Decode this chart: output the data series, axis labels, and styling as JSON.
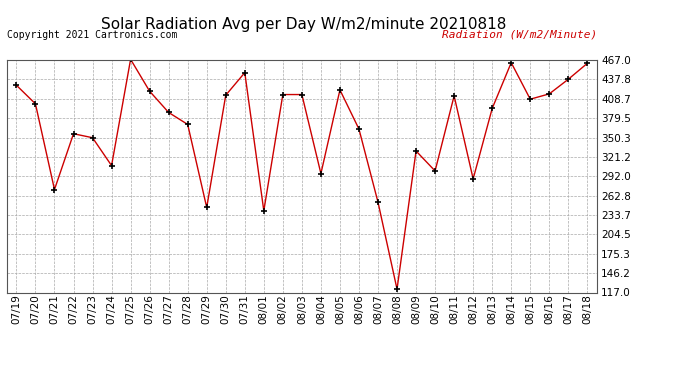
{
  "title": "Solar Radiation Avg per Day W/m2/minute 20210818",
  "copyright": "Copyright 2021 Cartronics.com",
  "legend_label": "Radiation (W/m2/Minute)",
  "dates": [
    "07/19",
    "07/20",
    "07/21",
    "07/22",
    "07/23",
    "07/24",
    "07/25",
    "07/26",
    "07/27",
    "07/28",
    "07/29",
    "07/30",
    "07/31",
    "08/01",
    "08/02",
    "08/03",
    "08/04",
    "08/05",
    "08/06",
    "08/07",
    "08/08",
    "08/09",
    "08/10",
    "08/11",
    "08/12",
    "08/13",
    "08/14",
    "08/15",
    "08/16",
    "08/17",
    "08/18"
  ],
  "values": [
    429.0,
    401.0,
    272.0,
    356.0,
    350.0,
    308.0,
    468.0,
    420.0,
    388.0,
    370.0,
    245.0,
    414.0,
    448.0,
    240.0,
    415.0,
    415.0,
    296.0,
    422.0,
    363.0,
    253.0,
    122.0,
    330.0,
    300.0,
    413.0,
    288.0,
    394.0,
    463.0,
    408.0,
    416.0,
    438.0,
    462.0
  ],
  "line_color": "#cc0000",
  "marker_color": "#000000",
  "background_color": "#ffffff",
  "grid_color": "#aaaaaa",
  "ylim_min": 117.0,
  "ylim_max": 467.0,
  "yticks": [
    117.0,
    146.2,
    175.3,
    204.5,
    233.7,
    262.8,
    292.0,
    321.2,
    350.3,
    379.5,
    408.7,
    437.8,
    467.0
  ],
  "title_fontsize": 11,
  "copyright_fontsize": 7,
  "legend_fontsize": 8,
  "tick_fontsize": 7.5
}
